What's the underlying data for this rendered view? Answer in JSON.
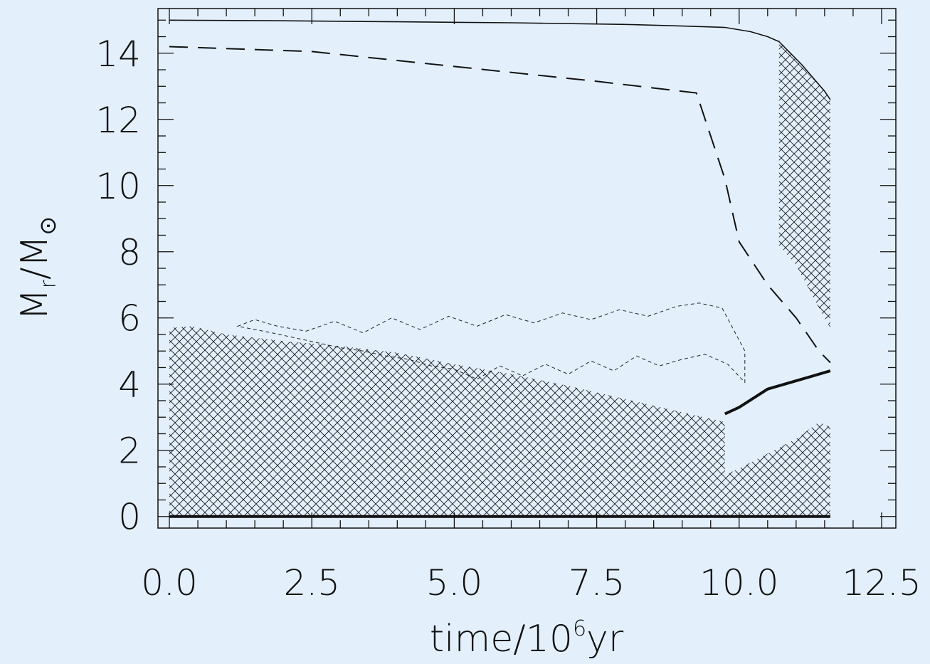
{
  "chart_data": {
    "type": "line",
    "xlabel_text": "time/10",
    "xlabel_sup": "6",
    "xlabel_unit": "yr",
    "ylabel_main": "M",
    "ylabel_sub": "r",
    "ylabel_mid": "/M",
    "ylabel_sun": "⊙",
    "xlim": [
      -0.2,
      12.75
    ],
    "ylim": [
      -0.35,
      15.35
    ],
    "xticks": [
      0.0,
      2.5,
      5.0,
      7.5,
      10.0,
      12.5
    ],
    "xtick_labels": [
      "0.0",
      "2.5",
      "5.0",
      "7.5",
      "10.0",
      "12.5"
    ],
    "yticks": [
      0,
      2,
      4,
      6,
      8,
      10,
      12,
      14
    ],
    "ytick_labels": [
      "0",
      "2",
      "4",
      "6",
      "8",
      "10",
      "12",
      "14"
    ],
    "x_minor_step": 0.5,
    "y_minor_step": 0.5,
    "series": [
      {
        "style": "solid-thin",
        "x": [
          0.0,
          2.0,
          4.0,
          6.0,
          8.0,
          9.0,
          9.75,
          10.2,
          10.5,
          10.7,
          10.9,
          11.1,
          11.3,
          11.5,
          11.6
        ],
        "y": [
          15.0,
          14.98,
          14.95,
          14.92,
          14.87,
          14.82,
          14.78,
          14.65,
          14.5,
          14.35,
          14.0,
          13.65,
          13.25,
          12.85,
          12.6
        ]
      },
      {
        "style": "dashed",
        "x": [
          0.0,
          2.5,
          5.0,
          7.5,
          9.25,
          9.75,
          10.0,
          10.5,
          11.0,
          11.4,
          11.6
        ],
        "y": [
          14.2,
          14.05,
          13.6,
          13.15,
          12.8,
          10.2,
          8.3,
          7.0,
          6.0,
          5.0,
          4.65
        ]
      },
      {
        "style": "solid-thick",
        "x": [
          9.75,
          10.0,
          10.5,
          11.0,
          11.6
        ],
        "y": [
          3.1,
          3.3,
          3.85,
          4.1,
          4.4
        ]
      },
      {
        "style": "solid-thick",
        "x": [
          0.0,
          11.6
        ],
        "y": [
          0.0,
          0.0
        ]
      }
    ],
    "hatched_regions": [
      {
        "x": [
          0.0,
          0.4,
          1.0,
          2.0,
          3.0,
          4.0,
          5.0,
          6.0,
          7.0,
          8.0,
          9.0,
          9.75,
          9.75,
          0.0
        ],
        "y": [
          5.7,
          5.75,
          5.5,
          5.3,
          5.15,
          4.95,
          4.6,
          4.3,
          3.95,
          3.55,
          3.15,
          2.85,
          0.0,
          0.0
        ]
      },
      {
        "x": [
          9.75,
          10.0,
          10.5,
          11.0,
          11.4,
          11.6,
          11.6,
          9.75
        ],
        "y": [
          1.25,
          1.45,
          1.9,
          2.35,
          2.85,
          2.7,
          0.0,
          0.0
        ]
      },
      {
        "x": [
          10.7,
          10.9,
          11.2,
          11.5,
          11.6,
          11.6,
          11.4,
          11.0,
          10.7
        ],
        "y": [
          14.4,
          14.0,
          13.4,
          12.85,
          12.55,
          5.7,
          6.3,
          7.6,
          8.2
        ]
      }
    ],
    "sawtooth_regions": [
      {
        "x": [
          1.2,
          1.5,
          1.9,
          2.4,
          2.9,
          3.4,
          3.9,
          4.4,
          4.9,
          5.4,
          5.9,
          6.4,
          6.9,
          7.4,
          7.9,
          8.4,
          8.9,
          9.3,
          9.7,
          10.1,
          10.1,
          9.8,
          9.4,
          9.0,
          8.6,
          8.2,
          7.8,
          7.4,
          7.0,
          6.6,
          6.2,
          5.8,
          5.4,
          5.0,
          4.6,
          4.2,
          3.8,
          3.4,
          3.0,
          2.6,
          2.2,
          1.8,
          1.2
        ],
        "y": [
          5.75,
          5.95,
          5.75,
          5.6,
          5.9,
          5.55,
          6.0,
          5.65,
          6.05,
          5.75,
          6.1,
          5.85,
          6.15,
          5.95,
          6.25,
          6.05,
          6.35,
          6.45,
          6.3,
          5.0,
          4.05,
          4.6,
          4.9,
          4.75,
          4.55,
          4.85,
          4.4,
          4.7,
          4.3,
          4.6,
          4.25,
          4.55,
          4.15,
          4.45,
          4.55,
          4.75,
          4.85,
          5.0,
          5.1,
          5.25,
          5.4,
          5.55,
          5.75
        ]
      }
    ]
  }
}
